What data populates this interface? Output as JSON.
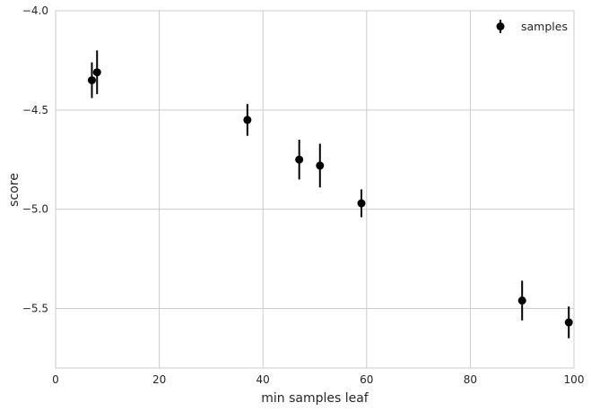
{
  "chart_data": {
    "type": "scatter",
    "title": "",
    "xlabel": "min samples leaf",
    "ylabel": "score",
    "xlim": [
      0,
      100
    ],
    "ylim": [
      -5.8,
      -4.0
    ],
    "xticks": [
      0,
      20,
      40,
      60,
      80,
      100
    ],
    "yticks": [
      -5.5,
      -5.0,
      -4.5,
      -4.0
    ],
    "xtick_labels": [
      "0",
      "20",
      "40",
      "60",
      "80",
      "100"
    ],
    "ytick_labels": [
      "−5.5",
      "−5.0",
      "−4.5",
      "−4.0"
    ],
    "grid": true,
    "legend": {
      "placement": "top-right"
    },
    "series": [
      {
        "name": "samples",
        "color": "#000000",
        "marker": "circle",
        "points": [
          {
            "x": 7,
            "y": -4.35,
            "err": 0.09
          },
          {
            "x": 8,
            "y": -4.31,
            "err": 0.11
          },
          {
            "x": 37,
            "y": -4.55,
            "err": 0.08
          },
          {
            "x": 47,
            "y": -4.75,
            "err": 0.1
          },
          {
            "x": 51,
            "y": -4.78,
            "err": 0.11
          },
          {
            "x": 59,
            "y": -4.97,
            "err": 0.07
          },
          {
            "x": 90,
            "y": -5.46,
            "err": 0.1
          },
          {
            "x": 99,
            "y": -5.57,
            "err": 0.08
          }
        ]
      }
    ]
  }
}
